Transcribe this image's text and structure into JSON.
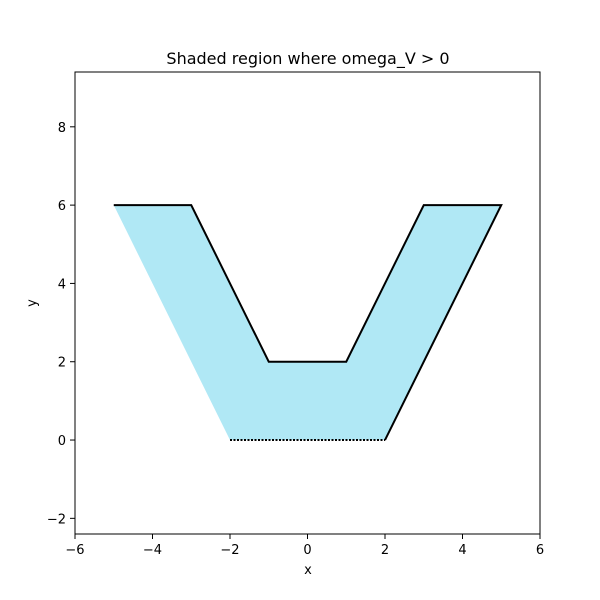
{
  "chart_data": {
    "type": "area",
    "title": "Shaded region where omega_V > 0",
    "xlabel": "x",
    "ylabel": "y",
    "xlim": [
      -6,
      6
    ],
    "ylim": [
      -2.4,
      9.4
    ],
    "xticks": [
      -6,
      -4,
      -2,
      0,
      2,
      4,
      6
    ],
    "yticks": [
      -2,
      0,
      2,
      4,
      6,
      8
    ],
    "xtick_labels": [
      "−6",
      "−4",
      "−2",
      "0",
      "2",
      "4",
      "6"
    ],
    "ytick_labels": [
      "−2",
      "0",
      "2",
      "4",
      "6",
      "8"
    ],
    "grid": false,
    "region": {
      "boundary": [
        [
          -5,
          6
        ],
        [
          -3,
          6
        ],
        [
          -1,
          2
        ],
        [
          1,
          2
        ],
        [
          3,
          6
        ],
        [
          5,
          6
        ],
        [
          2,
          0
        ],
        [
          -2,
          0
        ]
      ],
      "dotted_bottom_edge": [
        [
          -2,
          0
        ],
        [
          2,
          0
        ]
      ]
    },
    "colors": {
      "fill": "#b0e8f5",
      "edge": "#000000",
      "axes": "#000000"
    }
  }
}
